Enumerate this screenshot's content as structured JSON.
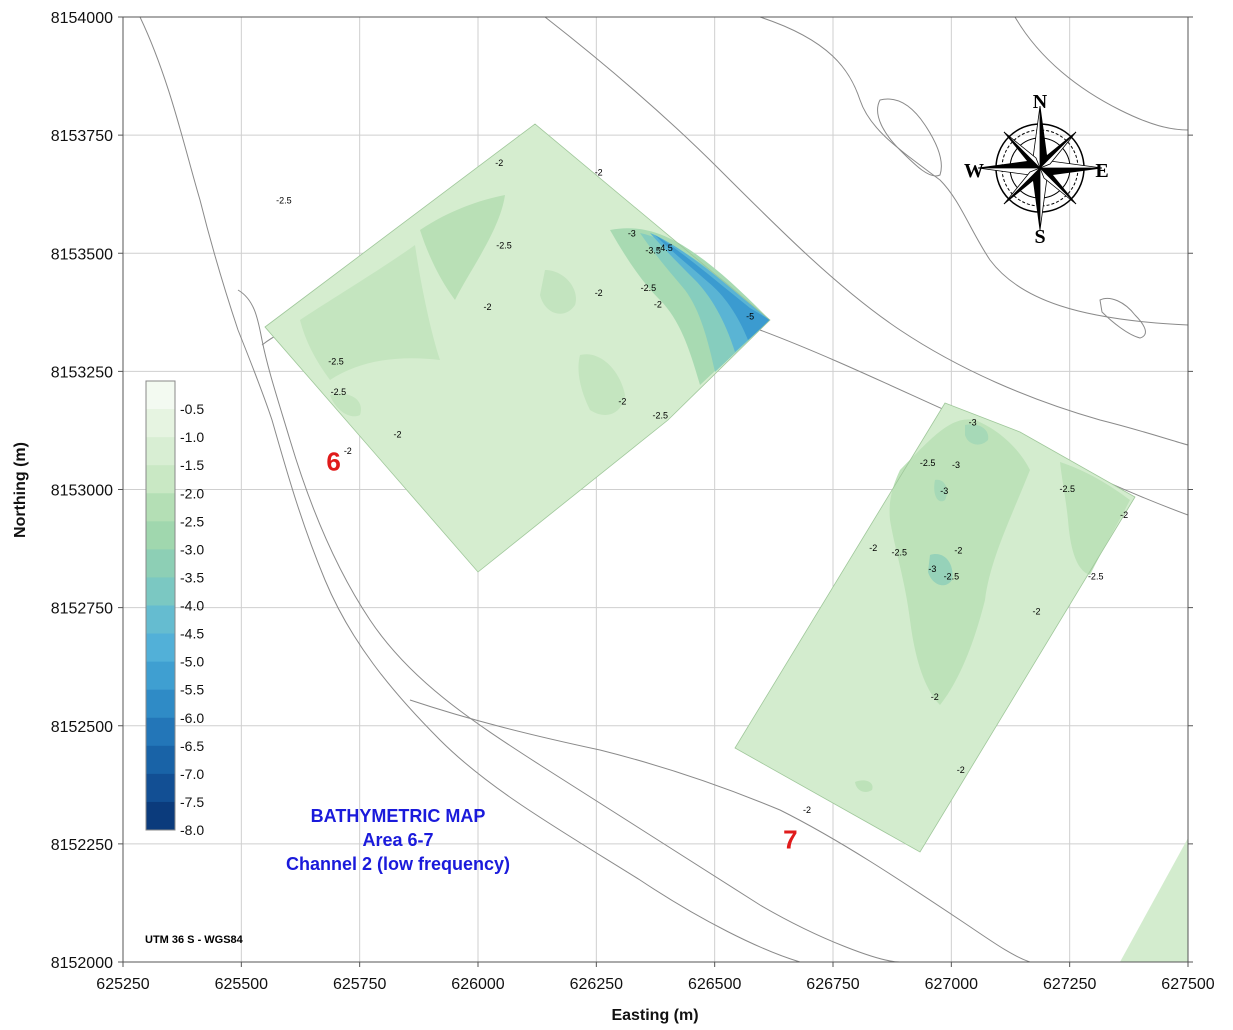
{
  "chart_data": {
    "type": "heatmap",
    "title": "BATHYMETRIC MAP",
    "subtitle_lines": [
      "Area 6-7",
      "Channel 2 (low frequency)"
    ],
    "xlabel": "Easting (m)",
    "ylabel": "Northing (m)",
    "xlim": [
      625250,
      627500
    ],
    "ylim": [
      8152000,
      8154000
    ],
    "x_ticks": [
      "625250",
      "625500",
      "625750",
      "626000",
      "626250",
      "626500",
      "626750",
      "627000",
      "627250",
      "627500"
    ],
    "y_ticks": [
      "8152000",
      "8152250",
      "8152500",
      "8152750",
      "8153000",
      "8153250",
      "8153500",
      "8153750",
      "8154000"
    ],
    "projection": "UTM 36 S - WGS84",
    "area_labels": [
      {
        "text": "6",
        "x": 625695,
        "y": 8153040
      },
      {
        "text": "7",
        "x": 626660,
        "y": 8152240
      }
    ],
    "colorbar": {
      "labels": [
        "-0.5",
        "-1.0",
        "-1.5",
        "-2.0",
        "-2.5",
        "-3.0",
        "-3.5",
        "-4.0",
        "-4.5",
        "-5.0",
        "-5.5",
        "-6.0",
        "-6.5",
        "-7.0",
        "-7.5",
        "-8.0"
      ],
      "colors": [
        "#f3faf1",
        "#e6f4e1",
        "#d8eed3",
        "#c9e8c4",
        "#b4dfb5",
        "#a0d7ae",
        "#8dcfb5",
        "#7bc8c2",
        "#65bcd0",
        "#52b0d8",
        "#3f9fd1",
        "#2f8bc6",
        "#2376b8",
        "#1963a7",
        "#124f94",
        "#0b3b7c"
      ]
    },
    "contour_labels": [
      {
        "text": "-2",
        "x": 626045,
        "y": 8153685
      },
      {
        "text": "-2",
        "x": 626255,
        "y": 8153665
      },
      {
        "text": "-2.5",
        "x": 625590,
        "y": 8153605
      },
      {
        "text": "-2.5",
        "x": 626055,
        "y": 8153510
      },
      {
        "text": "-3",
        "x": 626325,
        "y": 8153535
      },
      {
        "text": "-3.5",
        "x": 626370,
        "y": 8153500
      },
      {
        "text": "-4.5",
        "x": 626395,
        "y": 8153505
      },
      {
        "text": "-5",
        "x": 626575,
        "y": 8153360
      },
      {
        "text": "-2.5",
        "x": 626360,
        "y": 8153420
      },
      {
        "text": "-2",
        "x": 626255,
        "y": 8153410
      },
      {
        "text": "-2",
        "x": 626380,
        "y": 8153385
      },
      {
        "text": "-2",
        "x": 626020,
        "y": 8153380
      },
      {
        "text": "-2.5",
        "x": 625700,
        "y": 8153265
      },
      {
        "text": "-2.5",
        "x": 625705,
        "y": 8153200
      },
      {
        "text": "-2",
        "x": 626305,
        "y": 8153180
      },
      {
        "text": "-2.5",
        "x": 626385,
        "y": 8153150
      },
      {
        "text": "-2",
        "x": 625830,
        "y": 8153110
      },
      {
        "text": "-2",
        "x": 625725,
        "y": 8153075
      },
      {
        "text": "-3",
        "x": 627045,
        "y": 8153135
      },
      {
        "text": "-2.5",
        "x": 626950,
        "y": 8153050
      },
      {
        "text": "-3",
        "x": 627010,
        "y": 8153045
      },
      {
        "text": "-2.5",
        "x": 627245,
        "y": 8152995
      },
      {
        "text": "-2",
        "x": 627365,
        "y": 8152940
      },
      {
        "text": "-3",
        "x": 626985,
        "y": 8152990
      },
      {
        "text": "-2",
        "x": 626835,
        "y": 8152870
      },
      {
        "text": "-2.5",
        "x": 626890,
        "y": 8152860
      },
      {
        "text": "-2",
        "x": 627015,
        "y": 8152865
      },
      {
        "text": "-3",
        "x": 626960,
        "y": 8152825
      },
      {
        "text": "-2.5",
        "x": 627000,
        "y": 8152810
      },
      {
        "text": "-2.5",
        "x": 627305,
        "y": 8152810
      },
      {
        "text": "-2",
        "x": 627180,
        "y": 8152735
      },
      {
        "text": "-2",
        "x": 626965,
        "y": 8152555
      },
      {
        "text": "-2",
        "x": 627020,
        "y": 8152400
      },
      {
        "text": "-2",
        "x": 626695,
        "y": 8152315
      }
    ],
    "survey_areas": [
      {
        "name": "6",
        "depth_range": [
          -1.5,
          -5.5
        ]
      },
      {
        "name": "7",
        "depth_range": [
          -1.5,
          -3.5
        ]
      }
    ],
    "compass": {
      "N": "N",
      "S": "S",
      "E": "E",
      "W": "W"
    }
  }
}
